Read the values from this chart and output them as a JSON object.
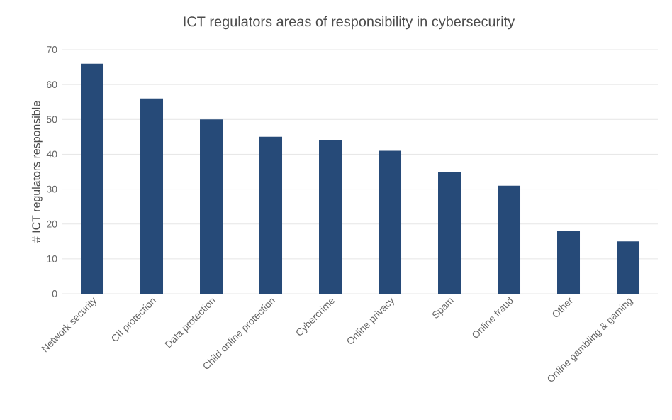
{
  "chart_data": {
    "type": "bar",
    "title": "ICT regulators areas of responsibility in cybersecurity",
    "ylabel": "# ICT regulators responsible",
    "categories": [
      "Network security",
      "CII protection",
      "Data protection",
      "Child online protection",
      "Cybercrime",
      "Online privacy",
      "Spam",
      "Online fraud",
      "Other",
      "Online gambling & gaming"
    ],
    "values": [
      66,
      56,
      50,
      45,
      44,
      41,
      35,
      31,
      18,
      15
    ],
    "color": "#264a78",
    "ylim": [
      0,
      70
    ],
    "yticks": [
      0,
      10,
      20,
      30,
      40,
      50,
      60,
      70
    ],
    "grid": "y"
  }
}
